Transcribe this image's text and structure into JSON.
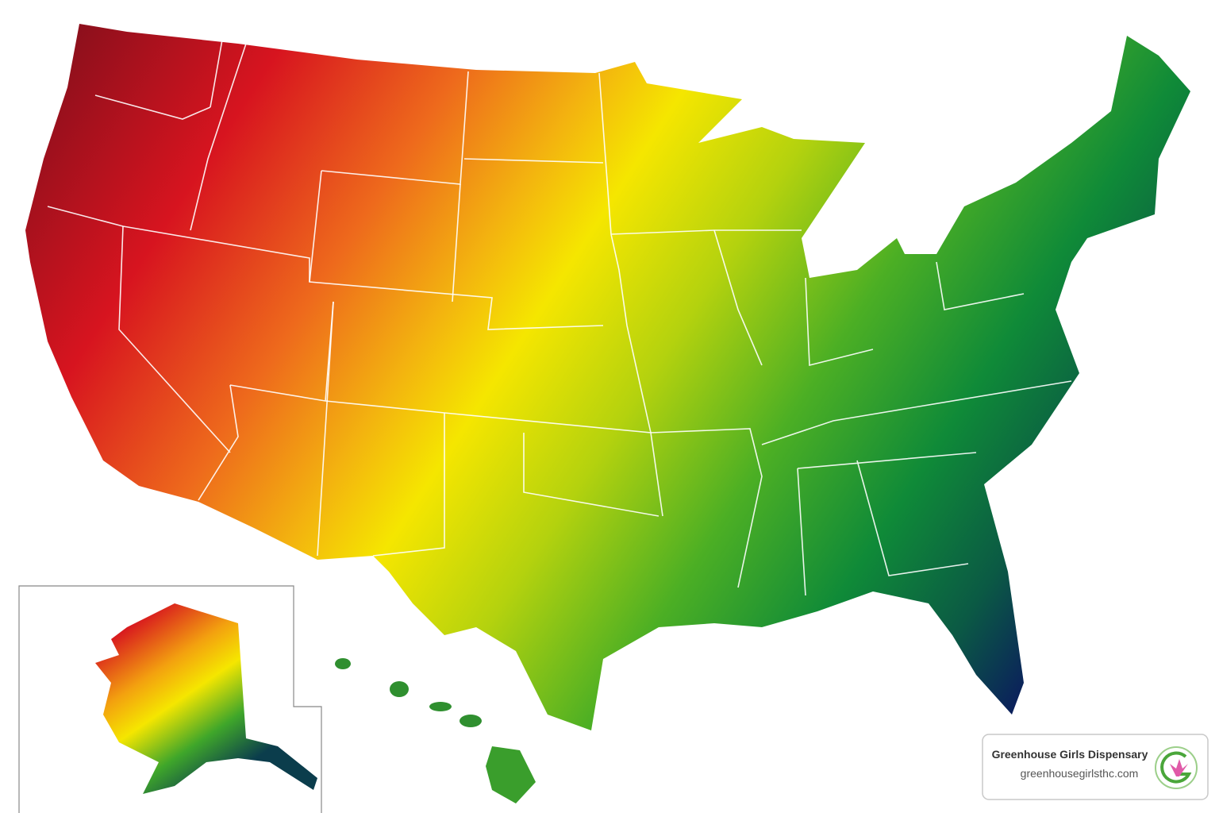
{
  "badge": {
    "title": "Greenhouse Girls Dispensary",
    "url": "greenhousegirlsthc.com"
  }
}
